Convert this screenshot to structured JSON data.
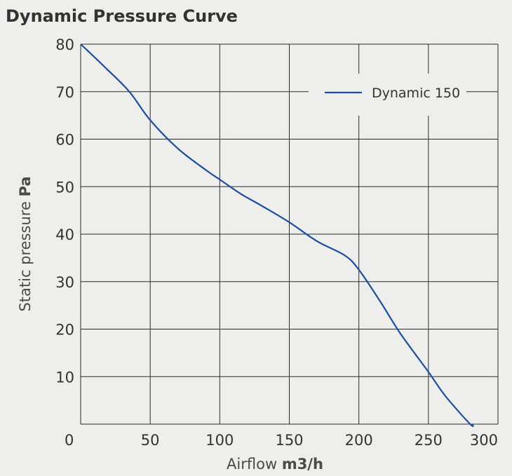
{
  "chart_data": {
    "type": "line",
    "title": "Dynamic Pressure Curve",
    "xlabel": {
      "prefix": "Airflow ",
      "unit": "m3/h"
    },
    "ylabel": {
      "prefix": "Static pressure ",
      "unit": "Pa"
    },
    "xlim": [
      0,
      300
    ],
    "ylim": [
      0,
      80
    ],
    "x_ticks": [
      "0",
      "50",
      "100",
      "150",
      "200",
      "250",
      "300"
    ],
    "y_ticks": [
      "80",
      "70",
      "60",
      "50",
      "40",
      "30",
      "20",
      "10"
    ],
    "grid": true,
    "legend_position": "top-right",
    "series": [
      {
        "name": "Dynamic 150",
        "color": "#1c4fa0",
        "x": [
          0,
          18,
          35,
          50,
          70,
          90,
          100,
          115,
          130,
          150,
          170,
          190,
          200,
          215,
          230,
          250,
          262,
          280,
          282
        ],
        "y": [
          80,
          75,
          70,
          64,
          58,
          53.5,
          51.5,
          48.5,
          46,
          42.5,
          38.5,
          35.5,
          32.5,
          26,
          19,
          11,
          6,
          0,
          0
        ]
      }
    ]
  }
}
